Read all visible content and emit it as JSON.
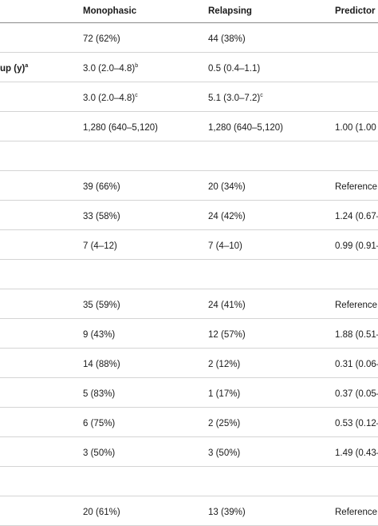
{
  "table": {
    "headers": [
      "",
      "Monophasic",
      "Relapsing",
      "Predictor"
    ],
    "rows": [
      {
        "label": "",
        "monophasic": "72 (62%)",
        "relapsing": "44 (38%)",
        "predictor": ""
      },
      {
        "label": "up (y)",
        "label_sup": "a",
        "monophasic": "3.0 (2.0–4.8)",
        "monophasic_sup": "b",
        "relapsing": "0.5 (0.4–1.1)",
        "predictor": ""
      },
      {
        "label": "",
        "monophasic": "3.0 (2.0–4.8)",
        "monophasic_sup": "c",
        "relapsing": "5.1 (3.0–7.2)",
        "relapsing_sup": "c",
        "predictor": ""
      },
      {
        "label": "",
        "monophasic": "1,280 (640–5,120)",
        "relapsing": "1,280 (640–5,120)",
        "predictor": "1.00 (1.00"
      },
      {
        "label": "",
        "monophasic": "",
        "relapsing": "",
        "predictor": ""
      },
      {
        "label": "",
        "monophasic": "39 (66%)",
        "relapsing": "20 (34%)",
        "predictor": "Reference"
      },
      {
        "label": "",
        "monophasic": "33 (58%)",
        "relapsing": "24 (42%)",
        "predictor": "1.24 (0.67–"
      },
      {
        "label": "",
        "monophasic": "7 (4–12)",
        "relapsing": "7 (4–10)",
        "predictor": "0.99 (0.91–"
      },
      {
        "label": "",
        "monophasic": "",
        "relapsing": "",
        "predictor": ""
      },
      {
        "label": "",
        "monophasic": "35 (59%)",
        "relapsing": "24 (41%)",
        "predictor": "Reference"
      },
      {
        "label": "",
        "monophasic": "9 (43%)",
        "relapsing": "12 (57%)",
        "predictor": "1.88 (0.51–"
      },
      {
        "label": "",
        "monophasic": "14 (88%)",
        "relapsing": "2 (12%)",
        "predictor": "0.31 (0.06–"
      },
      {
        "label": "",
        "monophasic": "5 (83%)",
        "relapsing": "1 (17%)",
        "predictor": "0.37 (0.05–"
      },
      {
        "label": "",
        "monophasic": "6 (75%)",
        "relapsing": "2 (25%)",
        "predictor": "0.53 (0.12–"
      },
      {
        "label": "",
        "monophasic": "3 (50%)",
        "relapsing": "3 (50%)",
        "predictor": "1.49 (0.43–"
      },
      {
        "label": "",
        "monophasic": "",
        "relapsing": "",
        "predictor": ""
      },
      {
        "label": "",
        "monophasic": "20 (61%)",
        "relapsing": "13 (39%)",
        "predictor": "Reference"
      }
    ]
  }
}
